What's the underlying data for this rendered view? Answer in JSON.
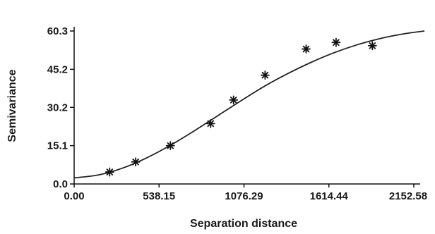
{
  "chart_data": {
    "type": "scatter",
    "title": "",
    "xlabel": "Separation distance",
    "ylabel": "Semivariance",
    "xlim": [
      0,
      2152.58
    ],
    "ylim": [
      0,
      60.3
    ],
    "x_ticks": [
      0,
      538.15,
      1076.29,
      1614.44,
      2152.58
    ],
    "x_tick_labels": [
      "0.00",
      "538.15",
      "1076.29",
      "1614.44",
      "2152.58"
    ],
    "y_ticks": [
      0,
      15.1,
      30.2,
      45.2,
      60.3
    ],
    "y_tick_labels": [
      "0.0",
      "15.1",
      "30.2",
      "45.2",
      "60.3"
    ],
    "grid": false,
    "series": [
      {
        "kind": "points",
        "marker": "asterisk",
        "x": [
          225,
          390,
          610,
          865,
          1010,
          1210,
          1470,
          1660,
          1890
        ],
        "y": [
          4.7,
          8.7,
          15.1,
          23.8,
          33.1,
          42.9,
          53.2,
          55.8,
          54.5
        ]
      },
      {
        "kind": "fitted-model",
        "x": [
          0,
          150,
          300,
          450,
          600,
          750,
          900,
          1050,
          1200,
          1350,
          1500,
          1650,
          1800,
          1950,
          2100,
          2220
        ],
        "y": [
          2.4,
          3.5,
          6.1,
          10.0,
          14.9,
          20.5,
          26.5,
          32.5,
          38.3,
          43.4,
          47.9,
          51.8,
          55.0,
          57.5,
          59.3,
          60.3
        ]
      }
    ]
  }
}
